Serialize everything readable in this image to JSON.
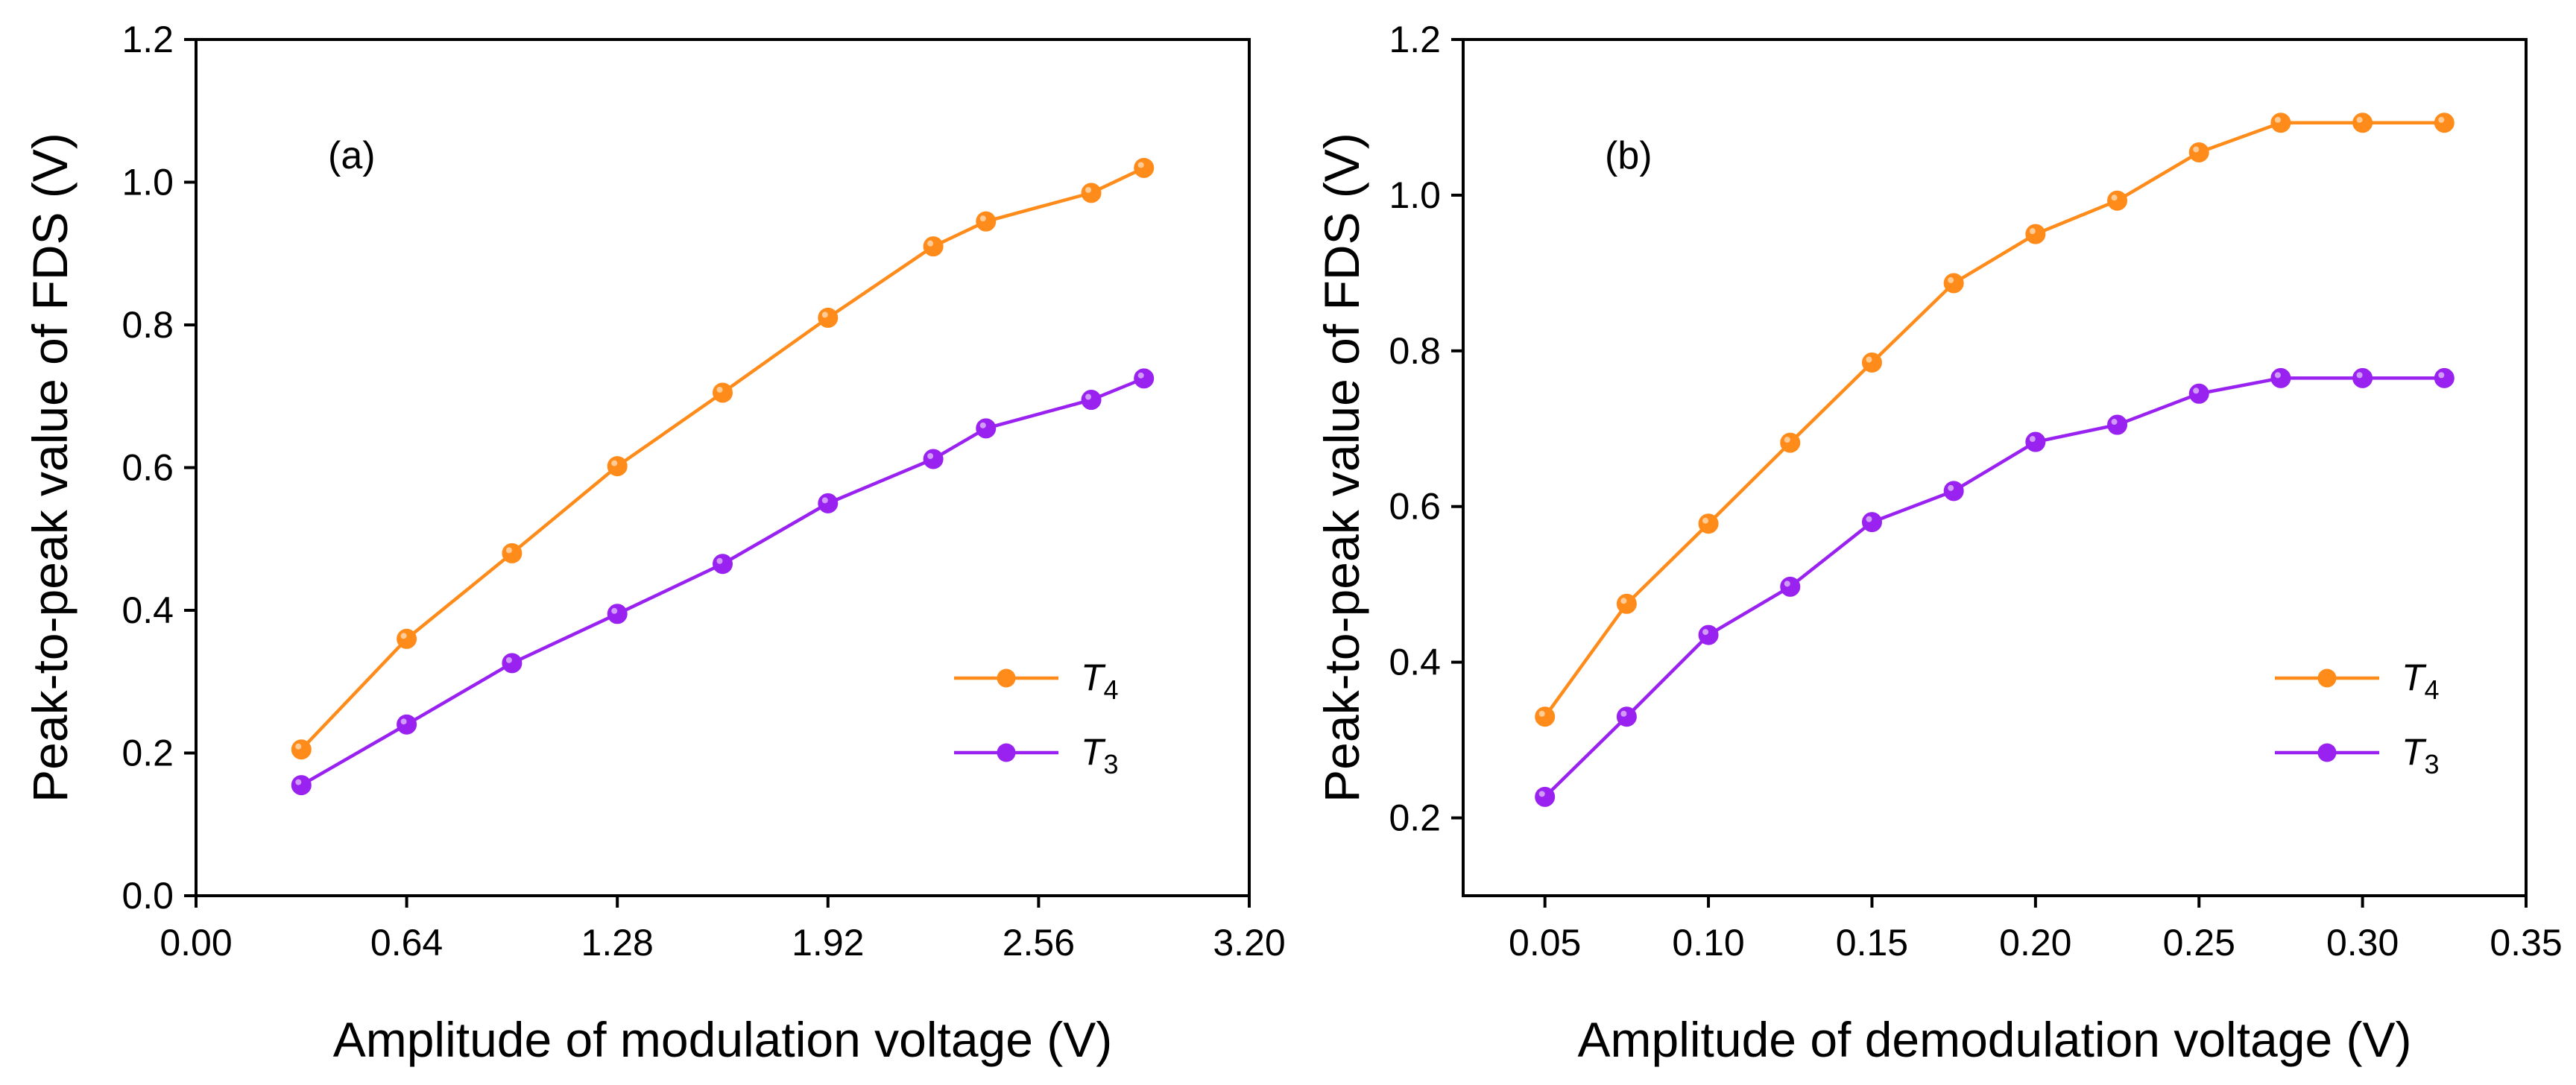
{
  "chart_data": [
    {
      "type": "line",
      "panel_label": "(a)",
      "xlabel": "Amplitude of modulation voltage (V)",
      "ylabel": "Peak-to-peak value of FDS (V)",
      "xlim": [
        0,
        3.2
      ],
      "ylim": [
        0,
        1.2
      ],
      "xticks": [
        0,
        0.64,
        1.28,
        1.92,
        2.56,
        3.2
      ],
      "xtick_labels": [
        "0.00",
        "0.64",
        "1.28",
        "1.92",
        "2.56",
        "3.20"
      ],
      "yticks": [
        0,
        0.2,
        0.4,
        0.6,
        0.8,
        1.0,
        1.2
      ],
      "ytick_labels": [
        "0.0",
        "0.2",
        "0.4",
        "0.6",
        "0.8",
        "1.0",
        "1.2"
      ],
      "legend_position": "lower-right",
      "series": [
        {
          "name": "T",
          "subscript": "4",
          "color": "#ff8c1a",
          "x": [
            0.32,
            0.64,
            0.96,
            1.28,
            1.6,
            1.92,
            2.24,
            2.4,
            2.72,
            2.88
          ],
          "y": [
            0.205,
            0.36,
            0.48,
            0.602,
            0.705,
            0.81,
            0.91,
            0.945,
            0.985,
            1.02
          ]
        },
        {
          "name": "T",
          "subscript": "3",
          "color": "#9a22f0",
          "x": [
            0.32,
            0.64,
            0.96,
            1.28,
            1.6,
            1.92,
            2.24,
            2.4,
            2.72,
            2.88
          ],
          "y": [
            0.155,
            0.24,
            0.326,
            0.395,
            0.465,
            0.55,
            0.612,
            0.655,
            0.695,
            0.725
          ]
        }
      ]
    },
    {
      "type": "line",
      "panel_label": "(b)",
      "xlabel": "Amplitude of demodulation voltage (V)",
      "ylabel": "Peak-to-peak value of FDS (V)",
      "xlim": [
        0.025,
        0.35
      ],
      "ylim": [
        0.1,
        1.2
      ],
      "xticks": [
        0.05,
        0.1,
        0.15,
        0.2,
        0.25,
        0.3,
        0.35
      ],
      "xtick_labels": [
        "0.05",
        "0.10",
        "0.15",
        "0.20",
        "0.25",
        "0.30",
        "0.35"
      ],
      "yticks": [
        0.2,
        0.4,
        0.6,
        0.8,
        1.0,
        1.2
      ],
      "ytick_labels": [
        "0.2",
        "0.4",
        "0.6",
        "0.8",
        "1.0",
        "1.2"
      ],
      "legend_position": "lower-right",
      "series": [
        {
          "name": "T",
          "subscript": "4",
          "color": "#ff8c1a",
          "x": [
            0.05,
            0.075,
            0.1,
            0.125,
            0.15,
            0.175,
            0.2,
            0.225,
            0.25,
            0.275,
            0.3,
            0.325
          ],
          "y": [
            0.33,
            0.475,
            0.578,
            0.682,
            0.785,
            0.887,
            0.95,
            0.993,
            1.055,
            1.093,
            1.093,
            1.093
          ]
        },
        {
          "name": "T",
          "subscript": "3",
          "color": "#9a22f0",
          "x": [
            0.05,
            0.075,
            0.1,
            0.125,
            0.15,
            0.175,
            0.2,
            0.225,
            0.25,
            0.275,
            0.3,
            0.325
          ],
          "y": [
            0.227,
            0.33,
            0.435,
            0.497,
            0.58,
            0.62,
            0.683,
            0.705,
            0.745,
            0.765,
            0.765,
            0.765
          ]
        }
      ]
    }
  ]
}
